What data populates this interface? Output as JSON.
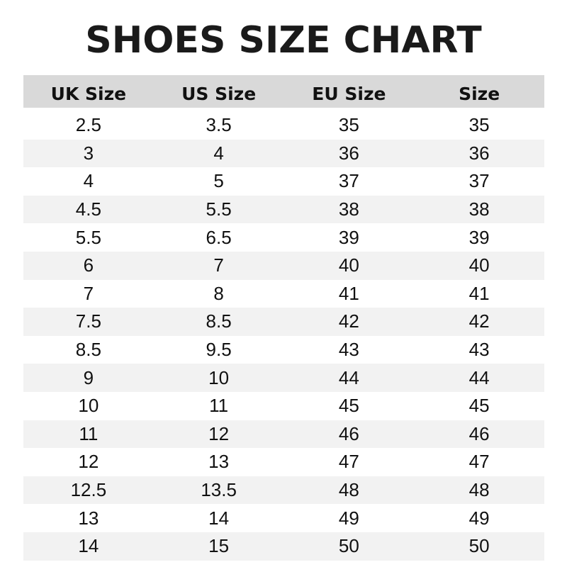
{
  "title": "SHOES SIZE CHART",
  "headers": [
    "UK Size",
    "US Size",
    "EU Size",
    "Size"
  ],
  "rows": [
    [
      "2.5",
      "3.5",
      "35",
      "35"
    ],
    [
      "3",
      "4",
      "36",
      "36"
    ],
    [
      "4",
      "5",
      "37",
      "37"
    ],
    [
      "4.5",
      "5.5",
      "38",
      "38"
    ],
    [
      "5.5",
      "6.5",
      "39",
      "39"
    ],
    [
      "6",
      "7",
      "40",
      "40"
    ],
    [
      "7",
      "8",
      "41",
      "41"
    ],
    [
      "7.5",
      "8.5",
      "42",
      "42"
    ],
    [
      "8.5",
      "9.5",
      "43",
      "43"
    ],
    [
      "9",
      "10",
      "44",
      "44"
    ],
    [
      "10",
      "11",
      "45",
      "45"
    ],
    [
      "11",
      "12",
      "46",
      "46"
    ],
    [
      "12",
      "13",
      "47",
      "47"
    ],
    [
      "12.5",
      "13.5",
      "48",
      "48"
    ],
    [
      "13",
      "14",
      "49",
      "49"
    ],
    [
      "14",
      "15",
      "50",
      "50"
    ]
  ],
  "colors": {
    "header_bg": "#d9d9d9",
    "stripe_bg": "#f2f2f2",
    "text": "#111111"
  }
}
